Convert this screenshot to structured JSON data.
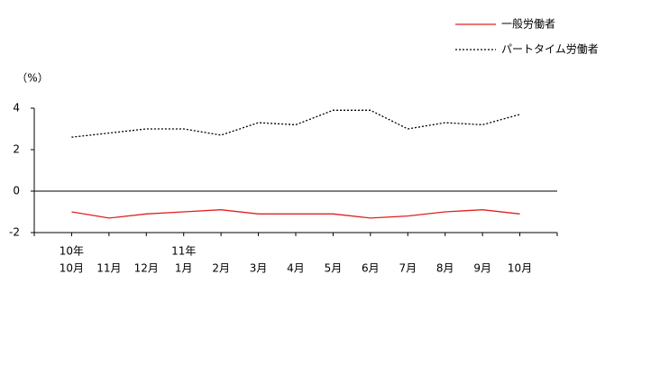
{
  "chart_data": {
    "type": "line",
    "y_label": "（%）",
    "categories": [
      "10月",
      "11月",
      "12月",
      "1月",
      "2月",
      "3月",
      "4月",
      "5月",
      "6月",
      "7月",
      "8月",
      "9月",
      "10月"
    ],
    "year_labels": [
      "10年",
      null,
      null,
      "11年",
      null,
      null,
      null,
      null,
      null,
      null,
      null,
      null,
      null
    ],
    "series": [
      {
        "name": "一般労働者",
        "color": "#e02020",
        "dash": "solid",
        "values": [
          -1.0,
          -1.3,
          -1.1,
          -1.0,
          -0.9,
          -1.1,
          -1.1,
          -1.1,
          -1.3,
          -1.2,
          -1.0,
          -0.9,
          -1.1
        ]
      },
      {
        "name": "パートタイム労働者",
        "color": "#000000",
        "dash": "dotted",
        "values": [
          2.6,
          2.8,
          3.0,
          3.0,
          2.7,
          3.3,
          3.2,
          3.9,
          3.9,
          3.0,
          3.3,
          3.2,
          3.7
        ]
      }
    ],
    "ylim": [
      -2,
      4
    ],
    "yticks": [
      -2,
      0,
      2,
      4
    ],
    "zero_line": true,
    "legend": "top-right"
  }
}
